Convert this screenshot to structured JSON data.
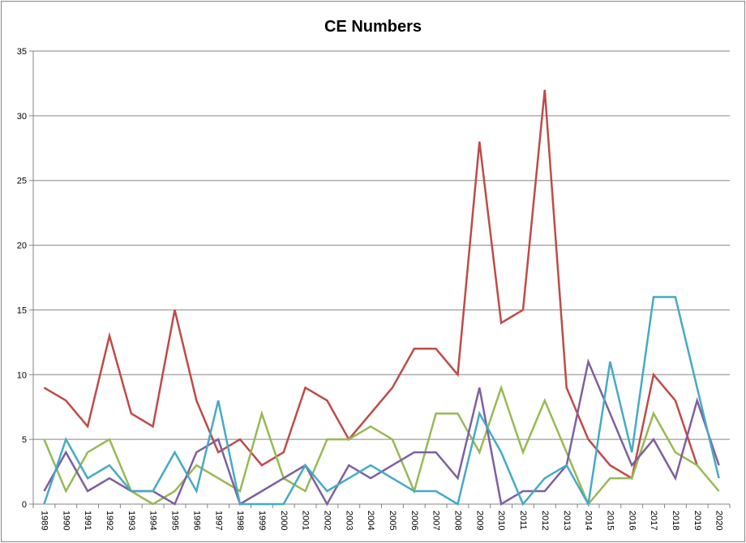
{
  "chart_data": {
    "type": "line",
    "title": "CE Numbers",
    "xlabel": "",
    "ylabel": "",
    "ylim": [
      0,
      35
    ],
    "yticks": [
      0,
      5,
      10,
      15,
      20,
      25,
      30,
      35
    ],
    "grid": "horizontal",
    "legend": "none",
    "categories": [
      "1989",
      "1990",
      "1991",
      "1992",
      "1993",
      "1994",
      "1995",
      "1996",
      "1997",
      "1998",
      "1999",
      "2000",
      "2001",
      "2002",
      "2003",
      "2004",
      "2005",
      "2006",
      "2007",
      "2008",
      "2009",
      "2010",
      "2011",
      "2012",
      "2013",
      "2014",
      "2015",
      "2016",
      "2017",
      "2018",
      "2019",
      "2020"
    ],
    "series": [
      {
        "color": "#BE4B48",
        "values": [
          9,
          8,
          6,
          13,
          7,
          6,
          15,
          8,
          4,
          5,
          3,
          4,
          9,
          8,
          5,
          7,
          9,
          12,
          12,
          10,
          28,
          14,
          15,
          32,
          9,
          5,
          3,
          2,
          10,
          8,
          3,
          null
        ]
      },
      {
        "color": "#98B954",
        "values": [
          5,
          1,
          4,
          5,
          1,
          0,
          1,
          3,
          2,
          1,
          7,
          2,
          1,
          5,
          5,
          6,
          5,
          1,
          7,
          7,
          4,
          9,
          4,
          8,
          4,
          0,
          2,
          2,
          7,
          4,
          3,
          1
        ]
      },
      {
        "color": "#7D60A0",
        "values": [
          1,
          4,
          1,
          2,
          1,
          1,
          0,
          4,
          5,
          0,
          1,
          2,
          3,
          0,
          3,
          2,
          3,
          4,
          4,
          2,
          9,
          0,
          1,
          1,
          3,
          11,
          7,
          3,
          5,
          2,
          8,
          3
        ]
      },
      {
        "color": "#46AAC5",
        "values": [
          0,
          5,
          2,
          3,
          1,
          1,
          4,
          1,
          8,
          0,
          0,
          0,
          3,
          1,
          2,
          3,
          2,
          1,
          1,
          0,
          7,
          4,
          0,
          2,
          3,
          0,
          11,
          4,
          16,
          16,
          9,
          2
        ]
      }
    ]
  }
}
